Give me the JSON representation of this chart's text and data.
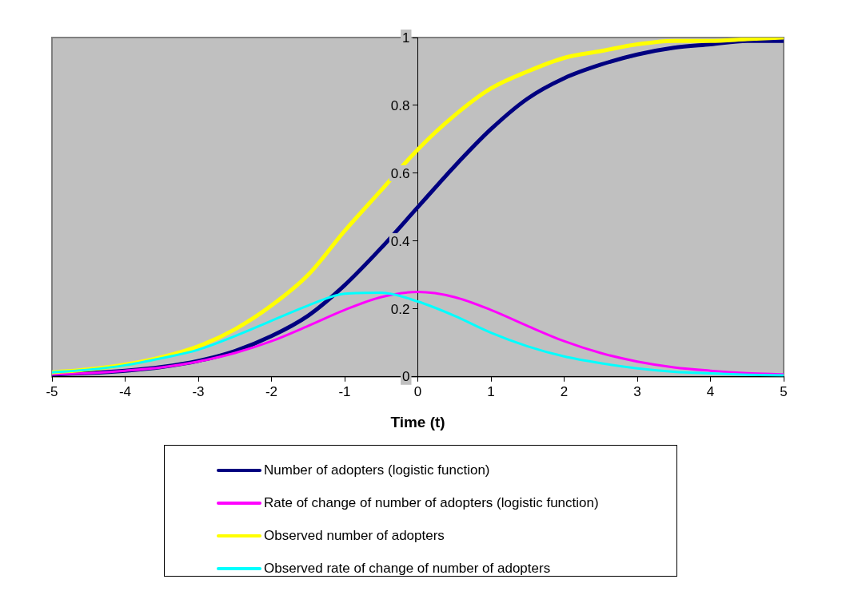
{
  "chart_data": {
    "type": "line",
    "xlabel": "Time (t)",
    "x": [
      -5,
      -4.5,
      -4,
      -3.5,
      -3,
      -2.5,
      -2,
      -1.5,
      -1,
      -0.5,
      0,
      0.5,
      1,
      1.5,
      2,
      2.5,
      3,
      3.5,
      4,
      4.5,
      5
    ],
    "xlim": [
      -5,
      5
    ],
    "xticks": [
      -5,
      -4,
      -3,
      -2,
      -1,
      0,
      1,
      2,
      3,
      4,
      5
    ],
    "ylim": [
      0,
      1
    ],
    "yticks": [
      0,
      0.2,
      0.4,
      0.6,
      0.8,
      1
    ],
    "grid": false,
    "legend": "bottom",
    "marker": "none",
    "line_style": "solid",
    "series": [
      {
        "name": "Number of adopters (logistic function)",
        "color": "#000080",
        "values": [
          0.007,
          0.011,
          0.018,
          0.029,
          0.047,
          0.076,
          0.12,
          0.18,
          0.27,
          0.38,
          0.5,
          0.62,
          0.73,
          0.82,
          0.88,
          0.92,
          0.95,
          0.97,
          0.98,
          0.99,
          0.99
        ]
      },
      {
        "name": "Rate of change of number of adopters (logistic function)",
        "color": "#ff00ff",
        "values": [
          0.007,
          0.011,
          0.018,
          0.028,
          0.045,
          0.07,
          0.105,
          0.15,
          0.197,
          0.235,
          0.25,
          0.235,
          0.197,
          0.15,
          0.105,
          0.07,
          0.045,
          0.028,
          0.018,
          0.011,
          0.007
        ]
      },
      {
        "name": "Observed number of adopters",
        "color": "#ffff00",
        "values": [
          0.013,
          0.022,
          0.036,
          0.058,
          0.09,
          0.14,
          0.21,
          0.3,
          0.43,
          0.55,
          0.67,
          0.77,
          0.85,
          0.9,
          0.94,
          0.96,
          0.98,
          0.99,
          0.99,
          0.995,
          1.0
        ]
      },
      {
        "name": "Observed rate of change of number of adopters",
        "color": "#00ffff",
        "values": [
          0.013,
          0.021,
          0.034,
          0.055,
          0.08,
          0.12,
          0.165,
          0.21,
          0.245,
          0.248,
          0.222,
          0.18,
          0.13,
          0.09,
          0.06,
          0.04,
          0.025,
          0.015,
          0.01,
          0.006,
          0.004
        ]
      }
    ]
  }
}
